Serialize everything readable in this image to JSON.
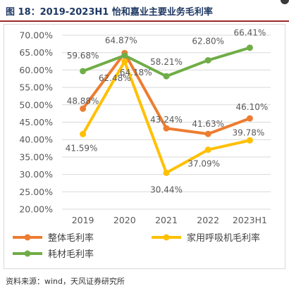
{
  "header": {
    "title": "图 18：2019-2023H1 怡和嘉业主要业务毛利率"
  },
  "footer": {
    "source": "资料来源：wind，天风证券研究所"
  },
  "chart_data": {
    "type": "line",
    "title": "",
    "xlabel": "",
    "ylabel": "",
    "categories": [
      "2019",
      "2020",
      "2021",
      "2022",
      "2023H1"
    ],
    "y_ticks": [
      "20.00%",
      "25.00%",
      "30.00%",
      "35.00%",
      "40.00%",
      "45.00%",
      "50.00%",
      "55.00%",
      "60.00%",
      "65.00%",
      "70.00%"
    ],
    "ylim": [
      20,
      70
    ],
    "grid": true,
    "legend_position": "bottom",
    "series": [
      {
        "name": "整体毛利率",
        "color": "#ed7d31",
        "values": [
          48.88,
          64.87,
          43.24,
          41.63,
          46.1
        ],
        "labels": [
          "48.88%",
          "64.87%",
          "43.24%",
          "41.63%",
          "46.10%"
        ]
      },
      {
        "name": "家用呼吸机毛利率",
        "color": "#ffc000",
        "values": [
          41.59,
          62.48,
          30.44,
          37.09,
          39.78
        ],
        "labels": [
          "41.59%",
          "62.48%",
          "30.44%",
          "37.09%",
          "39.78%"
        ]
      },
      {
        "name": "耗材毛利率",
        "color": "#70ad47",
        "values": [
          59.68,
          64.18,
          58.21,
          62.8,
          66.41
        ],
        "labels": [
          "59.68%",
          "64.18%",
          "58.21%",
          "62.80%",
          "66.41%"
        ]
      }
    ]
  }
}
